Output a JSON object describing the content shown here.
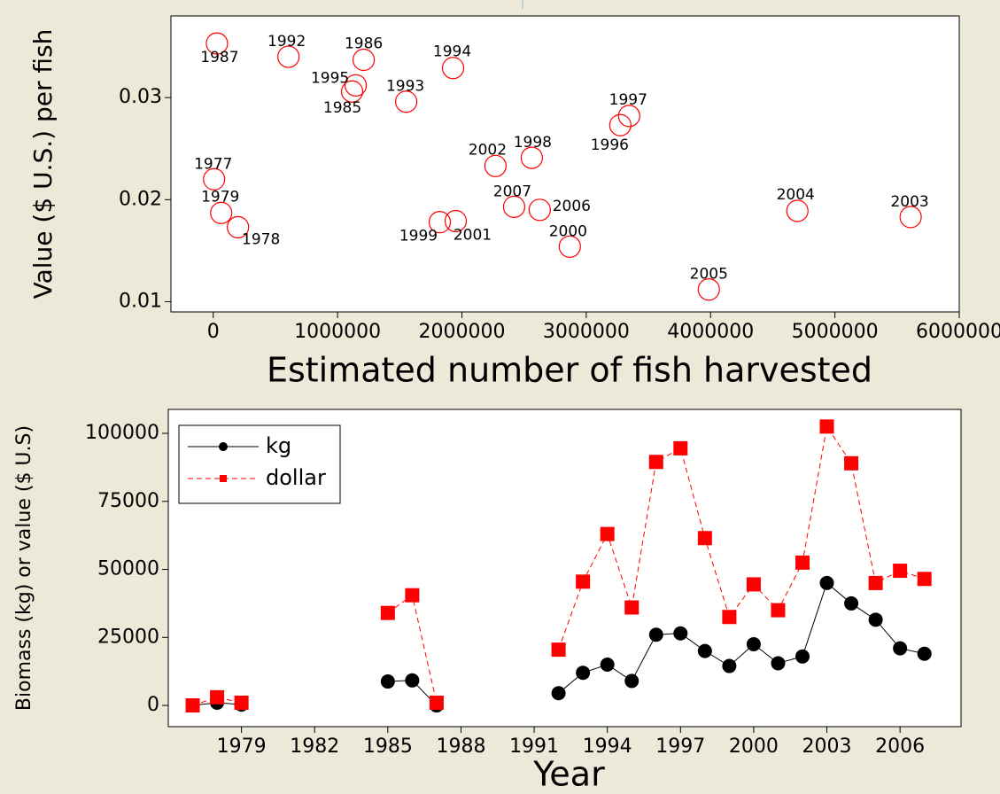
{
  "chart_data": [
    {
      "type": "scatter",
      "x_label": "Estimated number of fish harvested",
      "y_label": "Value ($ U.S.) per fish",
      "color": "#ff0000",
      "point_labels": [
        "1987",
        "1992",
        "1986",
        "1994",
        "1995",
        "1985",
        "1993",
        "1997",
        "1996",
        "1998",
        "2002",
        "1977",
        "2007",
        "2006",
        "2004",
        "1979",
        "2003",
        "1999",
        "2001",
        "1978",
        "2000",
        "2005"
      ],
      "x": [
        30000,
        605000,
        1210000,
        1929000,
        1146000,
        1117000,
        1552000,
        3345000,
        3274000,
        2562000,
        2270000,
        7000,
        2420000,
        2626000,
        4698000,
        64000,
        5609000,
        1822000,
        1950000,
        199000,
        2868000,
        3986000
      ],
      "values": [
        0.0353,
        0.034,
        0.0337,
        0.0329,
        0.0312,
        0.0306,
        0.0296,
        0.0282,
        0.0273,
        0.0241,
        0.0233,
        0.022,
        0.0193,
        0.019,
        0.0189,
        0.0187,
        0.0183,
        0.0178,
        0.0179,
        0.0173,
        0.0154,
        0.0112
      ],
      "xlim": [
        -340000,
        6000000
      ],
      "xticks": [
        0,
        1000000,
        2000000,
        3000000,
        4000000,
        5000000,
        6000000
      ],
      "ylim": [
        0.009,
        0.038
      ],
      "yticks": [
        0.01,
        0.02,
        0.03
      ]
    },
    {
      "type": "line",
      "x_label": "Year",
      "y_label": "Biomass (kg) or value ($ U.S)",
      "legend": "upper left",
      "x": [
        1977,
        1978,
        1979,
        1980,
        1981,
        1982,
        1983,
        1984,
        1985,
        1986,
        1987,
        1988,
        1989,
        1990,
        1991,
        1992,
        1993,
        1994,
        1995,
        1996,
        1997,
        1998,
        1999,
        2000,
        2001,
        2002,
        2003,
        2004,
        2005,
        2006,
        2007
      ],
      "series": [
        {
          "name": "kg",
          "color": "#000000",
          "marker": "circle",
          "dashed": false,
          "values": [
            0,
            1000,
            300,
            null,
            null,
            null,
            null,
            null,
            8800,
            9200,
            0,
            null,
            null,
            null,
            null,
            4500,
            12000,
            15000,
            9000,
            26000,
            26500,
            20000,
            14500,
            22500,
            15500,
            18000,
            45000,
            37500,
            31500,
            21000,
            19000
          ]
        },
        {
          "name": "dollar",
          "color": "#ff0000",
          "marker": "square",
          "dashed": true,
          "values": [
            0,
            3000,
            1000,
            null,
            null,
            null,
            null,
            null,
            34000,
            40500,
            1000,
            null,
            null,
            null,
            null,
            20500,
            45500,
            63000,
            36000,
            89500,
            94500,
            61500,
            32500,
            44500,
            35000,
            52500,
            102500,
            89000,
            45000,
            49500,
            46500
          ]
        }
      ],
      "xlim": [
        1976,
        2008.5
      ],
      "xticks": [
        1979,
        1982,
        1985,
        1988,
        1991,
        1994,
        1997,
        2000,
        2003,
        2006
      ],
      "ylim": [
        -7800,
        108800
      ],
      "yticks": [
        0,
        25000,
        50000,
        75000,
        100000
      ]
    }
  ]
}
